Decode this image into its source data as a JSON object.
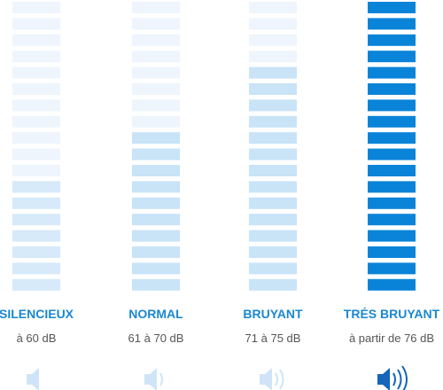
{
  "columns": [
    {
      "label": "SILENCIEUX",
      "range": "à 60 dB",
      "filled": 7,
      "color": "#d6eaf9"
    },
    {
      "label": "NORMAL",
      "range": "61 à 70 dB",
      "filled": 10,
      "color": "#c9e3f7"
    },
    {
      "label": "BRUYANT",
      "range": "71 à 75 dB",
      "filled": 14,
      "color": "#c9e3f7"
    },
    {
      "label": "TRÉS BRUYANT",
      "range": "à partir de 76 dB",
      "filled": 18,
      "color": "#0a84d8"
    }
  ]
}
